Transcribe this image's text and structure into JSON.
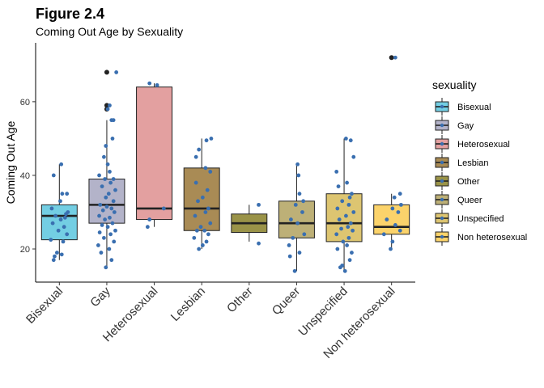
{
  "figure_label": "Figure 2.4",
  "chart_data": {
    "type": "box",
    "title": "Coming Out Age by Sexuality",
    "xlabel": "",
    "ylabel": "Coming Out Age",
    "ylim": [
      11,
      76
    ],
    "y_ticks": [
      20,
      40,
      60
    ],
    "grid": false,
    "legend": {
      "title": "sexuality",
      "position": "right"
    },
    "point_color": "#3a6fb0",
    "outlier_color": "#222222",
    "categories": [
      "Bisexual",
      "Gay",
      "Heterosexual",
      "Lesbian",
      "Other",
      "Queer",
      "Unspecified",
      "Non heterosexual"
    ],
    "boxes": [
      {
        "category": "Bisexual",
        "color": "#73cee3",
        "q1": 22.5,
        "median": 29,
        "q3": 32,
        "whisker_low": 17,
        "whisker_high": 43,
        "outliers": [],
        "points": [
          [
            -0.12,
            17
          ],
          [
            -0.1,
            18
          ],
          [
            -0.05,
            19
          ],
          [
            0.05,
            18.5
          ],
          [
            0.08,
            22
          ],
          [
            -0.18,
            22.5
          ],
          [
            0.16,
            24
          ],
          [
            -0.02,
            25
          ],
          [
            0.1,
            26
          ],
          [
            -0.14,
            27
          ],
          [
            0.03,
            28
          ],
          [
            0.12,
            28.5
          ],
          [
            -0.08,
            29
          ],
          [
            0.14,
            29.5
          ],
          [
            0.18,
            30
          ],
          [
            -0.16,
            31
          ],
          [
            0.02,
            33
          ],
          [
            0.06,
            35
          ],
          [
            0.16,
            35
          ],
          [
            -0.12,
            40
          ],
          [
            0.04,
            43
          ]
        ]
      },
      {
        "category": "Gay",
        "color": "#b3b3c9",
        "q1": 27,
        "median": 32,
        "q3": 39,
        "whisker_low": 15,
        "whisker_high": 55,
        "outliers": [
          58,
          59,
          68
        ],
        "points": [
          [
            -0.02,
            15
          ],
          [
            0.1,
            17
          ],
          [
            -0.12,
            19
          ],
          [
            0.05,
            20
          ],
          [
            -0.18,
            21
          ],
          [
            0.15,
            22
          ],
          [
            -0.06,
            23
          ],
          [
            0.08,
            24
          ],
          [
            -0.15,
            24.5
          ],
          [
            0.18,
            25
          ],
          [
            0.02,
            26
          ],
          [
            -0.1,
            26.5
          ],
          [
            0.12,
            27
          ],
          [
            -0.04,
            28
          ],
          [
            0.06,
            28.5
          ],
          [
            -0.16,
            29
          ],
          [
            0.16,
            30
          ],
          [
            -0.08,
            30.5
          ],
          [
            0.1,
            31
          ],
          [
            0,
            31.5
          ],
          [
            -0.14,
            32
          ],
          [
            0.14,
            33
          ],
          [
            -0.02,
            34
          ],
          [
            0.04,
            35
          ],
          [
            0.18,
            36
          ],
          [
            -0.1,
            37
          ],
          [
            0.08,
            38
          ],
          [
            -0.04,
            39
          ],
          [
            0.14,
            39
          ],
          [
            -0.16,
            40
          ],
          [
            0.06,
            41
          ],
          [
            0.02,
            43
          ],
          [
            -0.06,
            45
          ],
          [
            -0.02,
            48
          ],
          [
            0.12,
            50
          ],
          [
            0.1,
            55
          ],
          [
            0.14,
            55
          ],
          [
            0.02,
            58
          ],
          [
            0.06,
            59
          ],
          [
            0.2,
            68
          ]
        ]
      },
      {
        "category": "Heterosexual",
        "color": "#e3a0a0",
        "q1": 28,
        "median": 31,
        "q3": 64,
        "whisker_low": 26,
        "whisker_high": 65,
        "outliers": [],
        "points": [
          [
            -0.14,
            26
          ],
          [
            -0.1,
            28
          ],
          [
            0.2,
            31
          ],
          [
            -0.1,
            65
          ],
          [
            0.06,
            64.5
          ]
        ]
      },
      {
        "category": "Lesbian",
        "color": "#a98b55",
        "q1": 25,
        "median": 31,
        "q3": 42,
        "whisker_low": 20,
        "whisker_high": 50,
        "outliers": [],
        "points": [
          [
            -0.06,
            20
          ],
          [
            0.02,
            21
          ],
          [
            0.1,
            22
          ],
          [
            -0.16,
            23
          ],
          [
            0.14,
            24
          ],
          [
            -0.1,
            25
          ],
          [
            0.06,
            25
          ],
          [
            -0.02,
            26
          ],
          [
            0.18,
            27
          ],
          [
            -0.14,
            29
          ],
          [
            0.08,
            30
          ],
          [
            0.14,
            31
          ],
          [
            -0.08,
            33
          ],
          [
            0.02,
            34
          ],
          [
            0.12,
            36
          ],
          [
            -0.12,
            38
          ],
          [
            0.18,
            41
          ],
          [
            0.08,
            42
          ],
          [
            -0.12,
            45
          ],
          [
            -0.06,
            47
          ],
          [
            0.1,
            49.5
          ],
          [
            0.2,
            50
          ]
        ]
      },
      {
        "category": "Other",
        "color": "#9a9348",
        "q1": 24.5,
        "median": 27,
        "q3": 29.5,
        "whisker_low": 22,
        "whisker_high": 32,
        "outliers": [],
        "points": [
          [
            0.2,
            21.5
          ],
          [
            0.2,
            32
          ]
        ]
      },
      {
        "category": "Queer",
        "color": "#bdb077",
        "q1": 23,
        "median": 27,
        "q3": 33,
        "whisker_low": 14,
        "whisker_high": 43,
        "outliers": [],
        "points": [
          [
            -0.04,
            14
          ],
          [
            -0.14,
            18
          ],
          [
            0.06,
            19
          ],
          [
            -0.16,
            21
          ],
          [
            -0.08,
            23
          ],
          [
            0.16,
            24
          ],
          [
            0.02,
            27
          ],
          [
            -0.12,
            28
          ],
          [
            0.12,
            30
          ],
          [
            -0.02,
            32
          ],
          [
            0.14,
            33
          ],
          [
            0.06,
            35
          ],
          [
            0.04,
            40
          ],
          [
            0.02,
            43
          ]
        ]
      },
      {
        "category": "Unspecified",
        "color": "#ddc571",
        "q1": 22,
        "median": 27,
        "q3": 35,
        "whisker_low": 14,
        "whisker_high": 50,
        "outliers": [],
        "points": [
          [
            0.02,
            14
          ],
          [
            -0.08,
            15
          ],
          [
            -0.04,
            15.5
          ],
          [
            0.12,
            17
          ],
          [
            0.16,
            19
          ],
          [
            -0.14,
            20
          ],
          [
            0.06,
            21
          ],
          [
            -0.02,
            22
          ],
          [
            0.1,
            23
          ],
          [
            -0.16,
            24
          ],
          [
            0.18,
            25
          ],
          [
            -0.06,
            25.5
          ],
          [
            0.08,
            26
          ],
          [
            0.14,
            27
          ],
          [
            -0.1,
            28
          ],
          [
            0.04,
            29
          ],
          [
            0.2,
            30
          ],
          [
            -0.14,
            31
          ],
          [
            0.1,
            32
          ],
          [
            -0.04,
            33
          ],
          [
            0.12,
            34
          ],
          [
            0.16,
            35
          ],
          [
            -0.12,
            37
          ],
          [
            0.06,
            38
          ],
          [
            -0.16,
            41
          ],
          [
            0.2,
            45
          ],
          [
            0.14,
            49.5
          ],
          [
            0.04,
            50
          ]
        ]
      },
      {
        "category": "Non heterosexual",
        "color": "#fbd36b",
        "q1": 24,
        "median": 26,
        "q3": 32,
        "whisker_low": 20,
        "whisker_high": 35,
        "outliers": [
          72
        ],
        "points": [
          [
            -0.02,
            20
          ],
          [
            0.02,
            22
          ],
          [
            -0.16,
            24
          ],
          [
            0.18,
            25
          ],
          [
            0.08,
            26.5
          ],
          [
            -0.1,
            28
          ],
          [
            0.14,
            30
          ],
          [
            0.02,
            31
          ],
          [
            0.2,
            32
          ],
          [
            0.06,
            34
          ],
          [
            0.18,
            35
          ],
          [
            0.08,
            72
          ]
        ]
      }
    ]
  }
}
